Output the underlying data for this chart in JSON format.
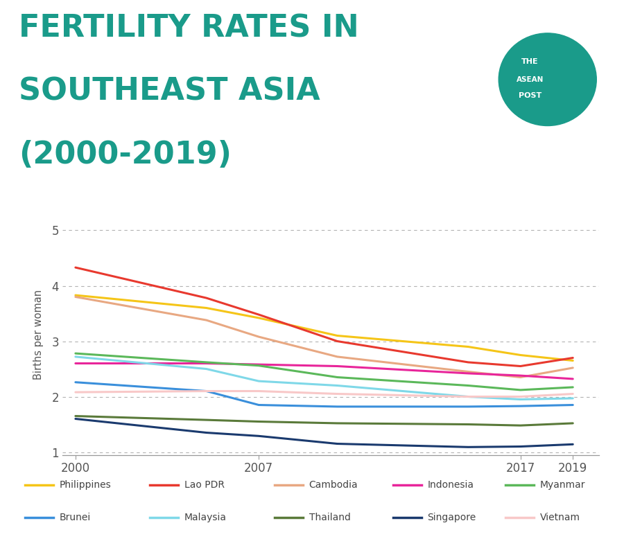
{
  "title_line1": "FERTILITY RATES IN",
  "title_line2": "SOUTHEAST ASIA",
  "title_line3": "(2000-2019)",
  "title_color": "#1a9b8a",
  "ylabel": "Births per woman",
  "background_color": "#ffffff",
  "years": [
    2000,
    2005,
    2007,
    2010,
    2015,
    2017,
    2019
  ],
  "series": {
    "Philippines": {
      "color": "#f5c518",
      "values": [
        3.83,
        3.6,
        3.42,
        3.1,
        2.9,
        2.75,
        2.65
      ]
    },
    "Lao PDR": {
      "color": "#e8392e",
      "values": [
        4.33,
        3.78,
        3.48,
        3.0,
        2.62,
        2.55,
        2.7
      ]
    },
    "Cambodia": {
      "color": "#e8a882",
      "values": [
        3.8,
        3.38,
        3.08,
        2.72,
        2.45,
        2.35,
        2.52
      ]
    },
    "Indonesia": {
      "color": "#e8259a",
      "values": [
        2.6,
        2.6,
        2.58,
        2.55,
        2.42,
        2.38,
        2.32
      ]
    },
    "Myanmar": {
      "color": "#5bb85a",
      "values": [
        2.78,
        2.62,
        2.56,
        2.35,
        2.2,
        2.12,
        2.17
      ]
    },
    "Brunei": {
      "color": "#3a8fdb",
      "values": [
        2.26,
        2.1,
        1.85,
        1.82,
        1.82,
        1.83,
        1.85
      ]
    },
    "Malaysia": {
      "color": "#7fd8e8",
      "values": [
        2.72,
        2.5,
        2.28,
        2.2,
        2.0,
        1.95,
        1.97
      ]
    },
    "Thailand": {
      "color": "#5a7a3a",
      "values": [
        1.65,
        1.58,
        1.55,
        1.52,
        1.5,
        1.48,
        1.52
      ]
    },
    "Singapore": {
      "color": "#1a3a6e",
      "values": [
        1.6,
        1.35,
        1.29,
        1.15,
        1.09,
        1.1,
        1.14
      ]
    },
    "Vietnam": {
      "color": "#f8c8c8",
      "values": [
        2.08,
        2.1,
        2.1,
        2.05,
        2.0,
        2.0,
        2.05
      ]
    }
  },
  "xlim": [
    1999.5,
    2020
  ],
  "ylim": [
    0.95,
    5.3
  ],
  "xticks": [
    2000,
    2007,
    2017,
    2019
  ],
  "yticks": [
    1,
    2,
    3,
    4,
    5
  ],
  "grid_color": "#aaaaaa",
  "legend_order": [
    "Philippines",
    "Lao PDR",
    "Cambodia",
    "Indonesia",
    "Myanmar",
    "Brunei",
    "Malaysia",
    "Thailand",
    "Singapore",
    "Vietnam"
  ]
}
